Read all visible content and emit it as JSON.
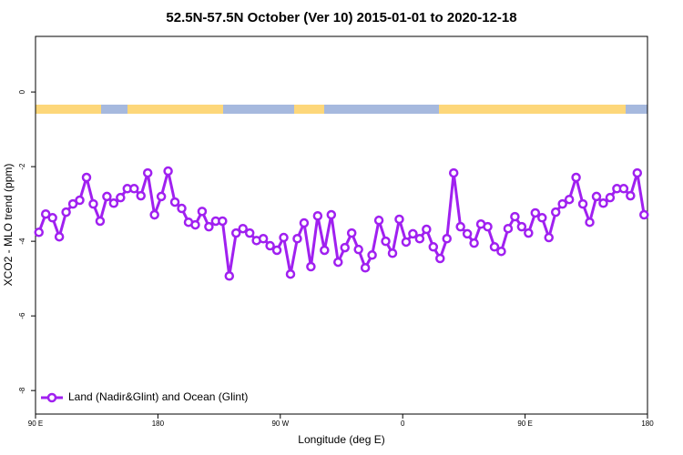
{
  "chart_data": {
    "type": "line",
    "title": "52.5N-57.5N October (Ver 10)   2015-01-01 to 2020-12-18",
    "xlabel": "Longitude (deg E)",
    "ylabel": "XCO2 - MLO trend (ppm)",
    "xlim": [
      90,
      540
    ],
    "ylim": [
      -8.63,
      1.49
    ],
    "xticks": [
      {
        "value": 90,
        "label": "90 E"
      },
      180,
      {
        "value": 270,
        "label": "90 W"
      },
      {
        "value": 360,
        "label": "0"
      },
      {
        "value": 450,
        "label": "90 E"
      },
      {
        "value": 540,
        "label": "180"
      }
    ],
    "yticks": [
      0,
      -2,
      -4,
      -6,
      -8
    ],
    "legend": "bottom-left",
    "x": [
      92.5,
      97.5,
      102.5,
      107.5,
      112.5,
      117.5,
      122.5,
      127.5,
      132.5,
      137.5,
      142.5,
      147.5,
      152.5,
      157.5,
      162.5,
      167.5,
      172.5,
      177.5,
      182.5,
      187.5,
      192.5,
      197.5,
      202.5,
      207.5,
      212.5,
      217.5,
      222.5,
      227.5,
      232.5,
      237.5,
      242.5,
      247.5,
      252.5,
      257.5,
      262.5,
      267.5,
      272.5,
      277.5,
      282.5,
      287.5,
      292.5,
      297.5,
      302.5,
      307.5,
      312.5,
      317.5,
      322.5,
      327.5,
      332.5,
      337.5,
      342.5,
      347.5,
      352.5,
      357.5,
      362.5,
      367.5,
      372.5,
      377.5,
      382.5,
      387.5,
      392.5,
      397.5,
      402.5,
      407.5,
      412.5,
      417.5,
      422.5,
      427.5,
      432.5,
      437.5,
      442.5,
      447.5,
      452.5,
      457.5,
      462.5,
      467.5,
      472.5,
      477.5,
      482.5,
      487.5,
      492.5,
      497.5,
      502.5,
      507.5,
      512.5,
      517.5,
      522.5,
      527.5,
      532.5,
      537.5
    ],
    "series": [
      {
        "name": "Land (Nadir&Glint) and Ocean (Glint)",
        "color": "#a020f0",
        "values": [
          -3.76,
          -3.27,
          -3.37,
          -3.88,
          -3.22,
          -3.0,
          -2.9,
          -2.29,
          -3.0,
          -3.46,
          -2.8,
          -2.98,
          -2.83,
          -2.59,
          -2.59,
          -2.78,
          -2.17,
          -3.29,
          -2.8,
          -2.12,
          -2.95,
          -3.12,
          -3.49,
          -3.56,
          -3.2,
          -3.61,
          -3.46,
          -3.46,
          -4.93,
          -3.78,
          -3.66,
          -3.78,
          -3.98,
          -3.93,
          -4.12,
          -4.24,
          -3.9,
          -4.88,
          -3.93,
          -3.51,
          -4.68,
          -3.32,
          -4.24,
          -3.29,
          -4.56,
          -4.17,
          -3.78,
          -4.22,
          -4.71,
          -4.37,
          -3.44,
          -4.0,
          -4.32,
          -3.41,
          -4.02,
          -3.8,
          -3.93,
          -3.68,
          -4.15,
          -4.46,
          -3.93,
          -2.17,
          -3.61,
          -3.8,
          -4.05,
          -3.54,
          -3.61,
          -4.15,
          -4.27,
          -3.66,
          -3.34,
          -3.61,
          -3.78,
          -3.24,
          -3.37,
          -3.9,
          -3.22,
          -3.0,
          -2.88,
          -2.29,
          -3.0,
          -3.49,
          -2.8,
          -2.98,
          -2.83,
          -2.59,
          -2.59,
          -2.78,
          -2.17,
          -3.29
        ]
      }
    ]
  }
}
